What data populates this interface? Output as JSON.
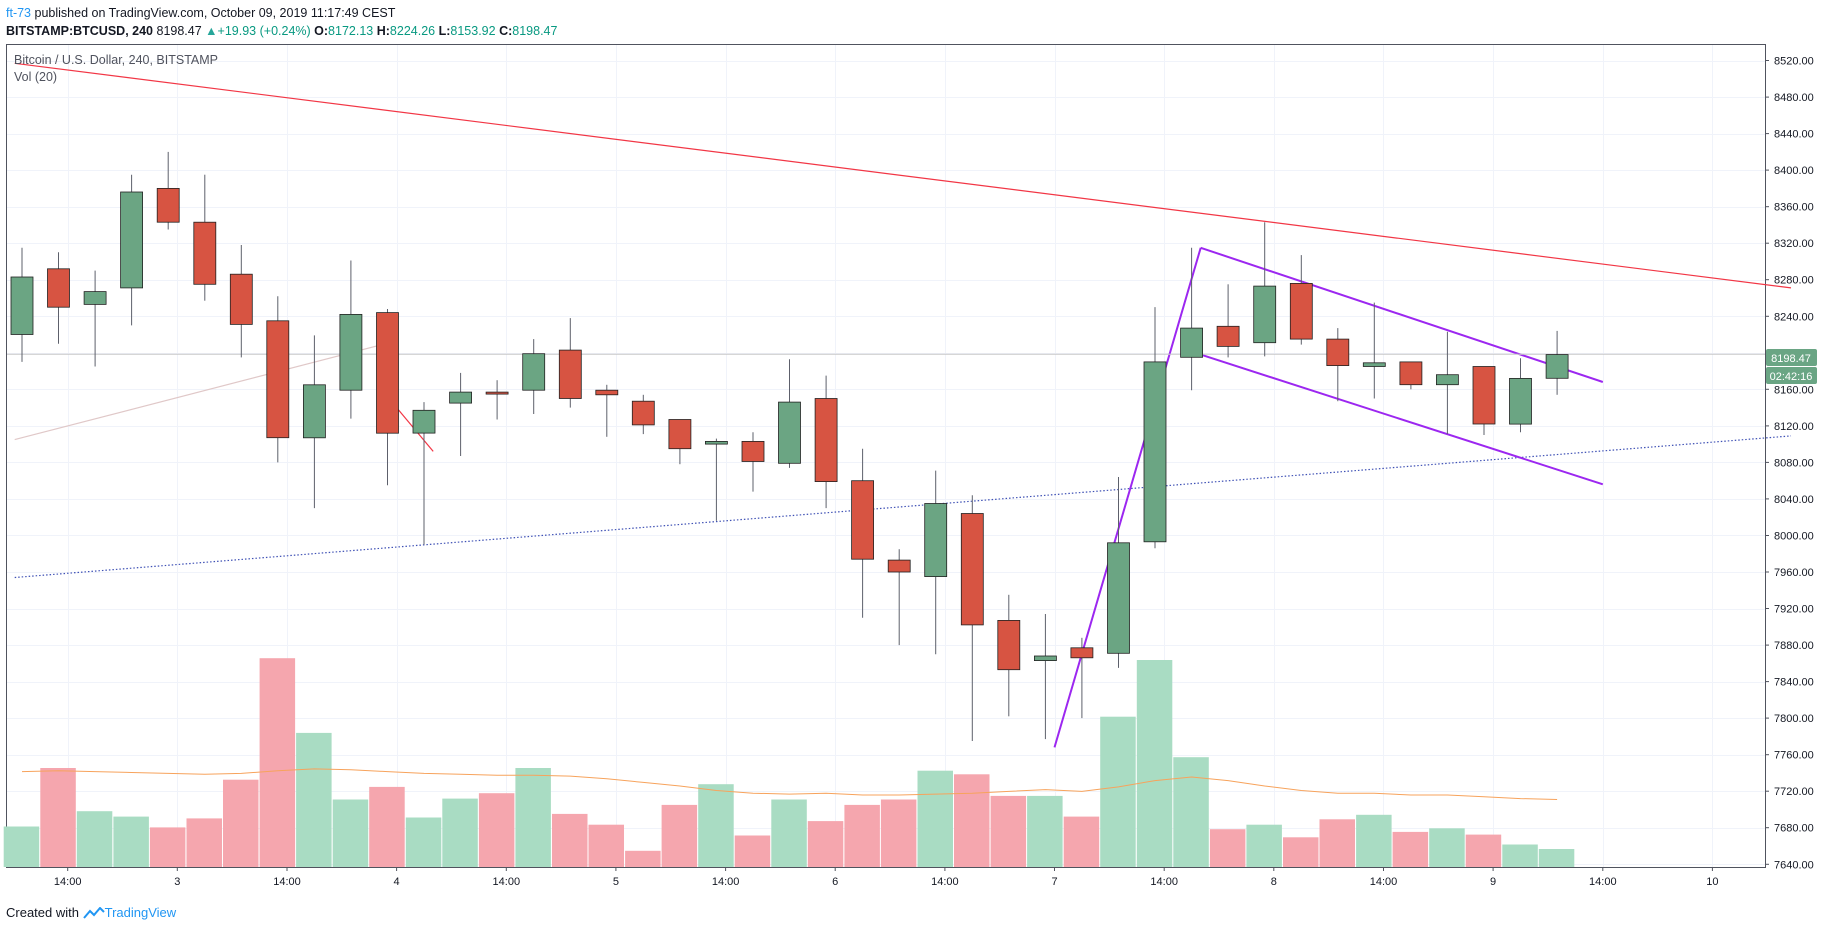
{
  "header": {
    "author": "ft-73",
    "published_text": "published on TradingView.com, October 09, 2019 11:17:49 CEST",
    "symbol": "BITSTAMP:BTCUSD, 240",
    "last": "8198.47",
    "change_arrow": "▲",
    "change": "+19.93 (+0.24%)",
    "o_label": "O:",
    "o_value": "8172.13",
    "h_label": "H:",
    "h_value": "8224.26",
    "l_label": "L:",
    "l_value": "8153.92",
    "c_label": "C:",
    "c_value": "8198.47"
  },
  "legend": {
    "title": "Bitcoin / U.S. Dollar, 240, BITSTAMP",
    "volume": "Vol (20)"
  },
  "footer": {
    "created_with": "Created with",
    "brand": "TradingView"
  },
  "price_badges": {
    "last_price": "8198.47",
    "countdown": "02:42:16",
    "color": "#6aa584"
  },
  "colors": {
    "up": "#6ba583",
    "down": "#d75442",
    "vol_up": "#a9dcc3",
    "vol_down": "#f5a6ae",
    "red_line": "#f23645",
    "purple": "#9c27f0",
    "blue_dotted": "#3f51b5",
    "vol_ma": "#f7a35c"
  },
  "chart_data": {
    "type": "candlestick",
    "title": "Bitcoin / U.S. Dollar, 240, BITSTAMP",
    "y_axis": {
      "ticks": [
        "8520.00",
        "8480.00",
        "8440.00",
        "8400.00",
        "8360.00",
        "8320.00",
        "8280.00",
        "8240.00",
        "8200.00",
        "8160.00",
        "8120.00",
        "8080.00",
        "8040.00",
        "8000.00",
        "7960.00",
        "7920.00",
        "7880.00",
        "7840.00",
        "7800.00",
        "7760.00",
        "7720.00",
        "7680.00",
        "7640.00"
      ],
      "tick_values": [
        8520,
        8480,
        8440,
        8400,
        8360,
        8320,
        8280,
        8240,
        8200,
        8160,
        8120,
        8080,
        8040,
        8000,
        7960,
        7920,
        7880,
        7840,
        7800,
        7760,
        7720,
        7680,
        7640
      ],
      "range": [
        7637,
        8537
      ]
    },
    "x_axis": {
      "ticks": [
        {
          "label": "14:00",
          "bar": 1.25
        },
        {
          "label": "3",
          "bar": 4.25
        },
        {
          "label": "14:00",
          "bar": 7.25
        },
        {
          "label": "4",
          "bar": 10.25
        },
        {
          "label": "14:00",
          "bar": 13.25
        },
        {
          "label": "5",
          "bar": 16.25
        },
        {
          "label": "14:00",
          "bar": 19.25
        },
        {
          "label": "6",
          "bar": 22.25
        },
        {
          "label": "14:00",
          "bar": 25.25
        },
        {
          "label": "7",
          "bar": 28.25
        },
        {
          "label": "14:00",
          "bar": 31.25
        },
        {
          "label": "8",
          "bar": 34.25
        },
        {
          "label": "14:00",
          "bar": 37.25
        },
        {
          "label": "9",
          "bar": 40.25
        },
        {
          "label": "14:00",
          "bar": 43.25
        },
        {
          "label": "10",
          "bar": 46.25
        }
      ]
    },
    "candles": [
      {
        "o": 8220,
        "h": 8315,
        "l": 8190,
        "c": 8283
      },
      {
        "o": 8292,
        "h": 8310,
        "l": 8210,
        "c": 8250
      },
      {
        "o": 8253,
        "h": 8290,
        "l": 8185,
        "c": 8267
      },
      {
        "o": 8271,
        "h": 8395,
        "l": 8230,
        "c": 8376
      },
      {
        "o": 8380,
        "h": 8420,
        "l": 8335,
        "c": 8343
      },
      {
        "o": 8343,
        "h": 8395,
        "l": 8257,
        "c": 8275
      },
      {
        "o": 8286,
        "h": 8318,
        "l": 8195,
        "c": 8231
      },
      {
        "o": 8235,
        "h": 8262,
        "l": 8080,
        "c": 8107
      },
      {
        "o": 8107,
        "h": 8219,
        "l": 8030,
        "c": 8165
      },
      {
        "o": 8159,
        "h": 8301,
        "l": 8128,
        "c": 8242
      },
      {
        "o": 8244,
        "h": 8248,
        "l": 8055,
        "c": 8112
      },
      {
        "o": 8112,
        "h": 8146,
        "l": 7990,
        "c": 8137
      },
      {
        "o": 8145,
        "h": 8178,
        "l": 8087,
        "c": 8157
      },
      {
        "o": 8157,
        "h": 8170,
        "l": 8127,
        "c": 8156
      },
      {
        "o": 8159,
        "h": 8215,
        "l": 8133,
        "c": 8199
      },
      {
        "o": 8203,
        "h": 8238,
        "l": 8140,
        "c": 8150
      },
      {
        "o": 8159,
        "h": 8165,
        "l": 8108,
        "c": 8154
      },
      {
        "o": 8147,
        "h": 8154,
        "l": 8111,
        "c": 8121
      },
      {
        "o": 8127,
        "h": 8127,
        "l": 8078,
        "c": 8095
      },
      {
        "o": 8100,
        "h": 8106,
        "l": 8016,
        "c": 8103
      },
      {
        "o": 8103,
        "h": 8113,
        "l": 8048,
        "c": 8081
      },
      {
        "o": 8079,
        "h": 8193,
        "l": 8074,
        "c": 8146
      },
      {
        "o": 8150,
        "h": 8175,
        "l": 8030,
        "c": 8059
      },
      {
        "o": 8060,
        "h": 8095,
        "l": 7910,
        "c": 7974
      },
      {
        "o": 7973,
        "h": 7985,
        "l": 7880,
        "c": 7960
      },
      {
        "o": 7955,
        "h": 8071,
        "l": 7870,
        "c": 8035
      },
      {
        "o": 8024,
        "h": 8044,
        "l": 7775,
        "c": 7902
      },
      {
        "o": 7907,
        "h": 7935,
        "l": 7802,
        "c": 7853
      },
      {
        "o": 7863,
        "h": 7914,
        "l": 7777,
        "c": 7868
      },
      {
        "o": 7877,
        "h": 7888,
        "l": 7800,
        "c": 7866
      },
      {
        "o": 7871,
        "h": 8064,
        "l": 7855,
        "c": 7992
      },
      {
        "o": 7993,
        "h": 8250,
        "l": 7986,
        "c": 8190
      },
      {
        "o": 8195,
        "h": 8315,
        "l": 8159,
        "c": 8227
      },
      {
        "o": 8229,
        "h": 8275,
        "l": 8195,
        "c": 8207
      },
      {
        "o": 8211,
        "h": 8343,
        "l": 8196,
        "c": 8273
      },
      {
        "o": 8276,
        "h": 8307,
        "l": 8209,
        "c": 8215
      },
      {
        "o": 8215,
        "h": 8227,
        "l": 8147,
        "c": 8186
      },
      {
        "o": 8185,
        "h": 8255,
        "l": 8150,
        "c": 8189
      },
      {
        "o": 8190,
        "h": 8190,
        "l": 8160,
        "c": 8165
      },
      {
        "o": 8165,
        "h": 8223,
        "l": 8111,
        "c": 8176
      },
      {
        "o": 8185,
        "h": 8185,
        "l": 8110,
        "c": 8122
      },
      {
        "o": 8122,
        "h": 8194,
        "l": 8113,
        "c": 8172
      },
      {
        "o": 8172,
        "h": 8224,
        "l": 8154,
        "c": 8198
      }
    ],
    "volume": [
      {
        "v": 45,
        "up": true
      },
      {
        "v": 110,
        "up": false
      },
      {
        "v": 62,
        "up": true
      },
      {
        "v": 56,
        "up": true
      },
      {
        "v": 44,
        "up": false
      },
      {
        "v": 54,
        "up": false
      },
      {
        "v": 97,
        "up": false
      },
      {
        "v": 232,
        "up": false
      },
      {
        "v": 149,
        "up": true
      },
      {
        "v": 75,
        "up": true
      },
      {
        "v": 89,
        "up": false
      },
      {
        "v": 55,
        "up": true
      },
      {
        "v": 76,
        "up": true
      },
      {
        "v": 82,
        "up": false
      },
      {
        "v": 110,
        "up": true
      },
      {
        "v": 59,
        "up": false
      },
      {
        "v": 47,
        "up": false
      },
      {
        "v": 18,
        "up": false
      },
      {
        "v": 69,
        "up": false
      },
      {
        "v": 92,
        "up": true
      },
      {
        "v": 35,
        "up": false
      },
      {
        "v": 75,
        "up": true
      },
      {
        "v": 51,
        "up": false
      },
      {
        "v": 69,
        "up": false
      },
      {
        "v": 75,
        "up": false
      },
      {
        "v": 107,
        "up": true
      },
      {
        "v": 103,
        "up": false
      },
      {
        "v": 79,
        "up": false
      },
      {
        "v": 79,
        "up": true
      },
      {
        "v": 56,
        "up": false
      },
      {
        "v": 167,
        "up": true
      },
      {
        "v": 230,
        "up": true
      },
      {
        "v": 122,
        "up": true
      },
      {
        "v": 42,
        "up": false
      },
      {
        "v": 47,
        "up": true
      },
      {
        "v": 33,
        "up": false
      },
      {
        "v": 53,
        "up": false
      },
      {
        "v": 58,
        "up": true
      },
      {
        "v": 39,
        "up": false
      },
      {
        "v": 43,
        "up": true
      },
      {
        "v": 36,
        "up": false
      },
      {
        "v": 25,
        "up": true
      },
      {
        "v": 20,
        "up": true
      }
    ],
    "volume_ma": [
      106,
      107,
      106,
      105,
      104,
      103,
      104,
      107,
      109,
      108,
      106,
      104,
      103,
      102,
      102,
      101,
      98,
      94,
      90,
      85,
      82,
      81,
      82,
      80,
      80,
      81,
      82,
      84,
      86,
      84,
      89,
      96,
      100,
      96,
      90,
      85,
      82,
      82,
      80,
      80,
      78,
      76,
      75
    ],
    "volume_ma_start": 0,
    "drawings": [
      {
        "type": "line",
        "name": "red-trendline",
        "color": "#f23645",
        "p1": {
          "bar": -0.2,
          "price": 8517
        },
        "p2": {
          "bar": 48.4,
          "price": 8271
        }
      },
      {
        "type": "line",
        "name": "blue-dotted-trendline",
        "color": "#3f51b5",
        "dotted": true,
        "p1": {
          "bar": -0.2,
          "price": 7954
        },
        "p2": {
          "bar": 48.4,
          "price": 8109
        }
      },
      {
        "type": "line",
        "name": "purple-pole",
        "color": "#9c27f0",
        "p1": {
          "bar": 28.25,
          "price": 7768
        },
        "p2": {
          "bar": 32.25,
          "price": 8315
        }
      },
      {
        "type": "line",
        "name": "purple-channel-top",
        "color": "#9c27f0",
        "p1": {
          "bar": 32.25,
          "price": 8315
        },
        "p2": {
          "bar": 43.25,
          "price": 8168
        }
      },
      {
        "type": "line",
        "name": "purple-channel-bottom",
        "color": "#9c27f0",
        "p1": {
          "bar": 32.25,
          "price": 8198
        },
        "p2": {
          "bar": 43.25,
          "price": 8056
        }
      },
      {
        "type": "line",
        "name": "red-short-line",
        "color": "#f23645",
        "p1": {
          "bar": 10.25,
          "price": 8140
        },
        "p2": {
          "bar": 11.25,
          "price": 8092
        }
      },
      {
        "type": "line",
        "name": "faint-line",
        "color": "#e0c8c8",
        "p1": {
          "bar": -0.2,
          "price": 8105
        },
        "p2": {
          "bar": 10.25,
          "price": 8213
        }
      },
      {
        "type": "hline",
        "name": "last-price-line",
        "color": "#c8c8c8",
        "price": 8198.47
      }
    ]
  }
}
